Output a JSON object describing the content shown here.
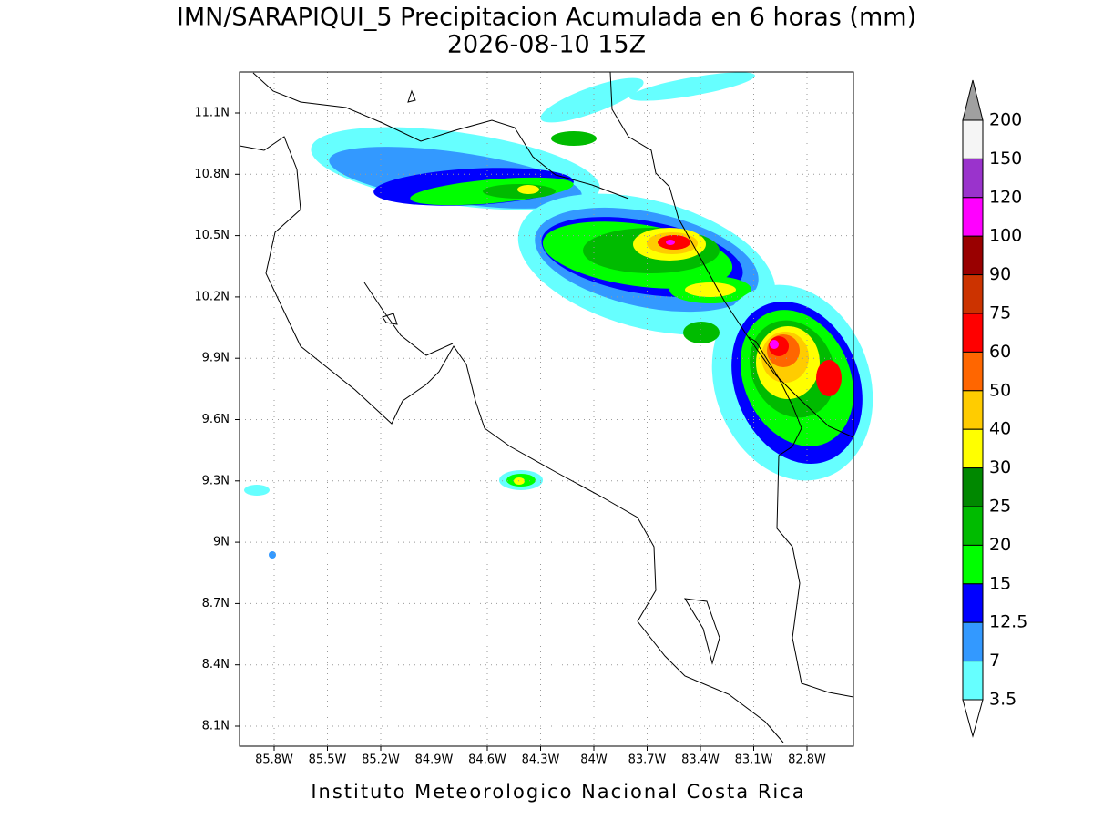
{
  "map": {
    "title": "IMN/SARAPIQUI_5 Precipitacion Acumulada en 6 horas (mm)",
    "subtitle": "2026-08-10 15Z",
    "lon_ticks": [
      "85.8W",
      "85.5W",
      "85.2W",
      "84.9W",
      "84.6W",
      "84.3W",
      "84W",
      "83.7W",
      "83.4W",
      "83.1W",
      "82.8W"
    ],
    "lat_ticks": [
      "11.1N",
      "10.8N",
      "10.5N",
      "10.2N",
      "9.9N",
      "9.6N",
      "9.3N",
      "9N",
      "8.7N",
      "8.4N",
      "8.1N"
    ],
    "footer": "Instituto Meteorologico Nacional Costa Rica"
  },
  "colorbar": {
    "levels": [
      "200",
      "150",
      "120",
      "100",
      "90",
      "75",
      "60",
      "50",
      "40",
      "30",
      "25",
      "20",
      "15",
      "12.5",
      "7",
      "3.5"
    ],
    "colors": [
      "#a0a0a0",
      "#f5f5f5",
      "#9a33cc",
      "#ff00ff",
      "#990000",
      "#cc3300",
      "#ff0000",
      "#ff6600",
      "#ffcc00",
      "#ffff00",
      "#008800",
      "#00bb00",
      "#00ff00",
      "#0000ff",
      "#3399ff",
      "#66ffff",
      "#ffffff"
    ]
  }
}
